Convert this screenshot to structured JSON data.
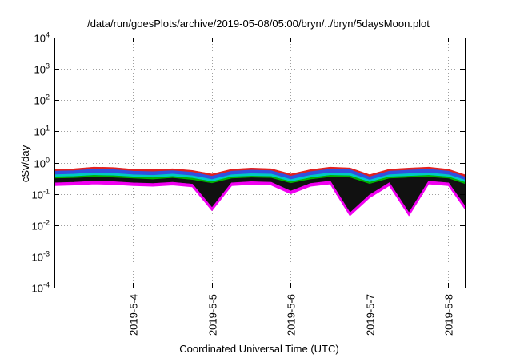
{
  "chart_data": {
    "type": "area",
    "title": "/data/run/goesPlots/archive/2019-05-08/05:00/bryn/../bryn/5daysMoon.plot",
    "xlabel": "Coordinated Universal Time (UTC)",
    "ylabel": "cSv/day",
    "y_scale": "log",
    "ylim": [
      0.0001,
      10000
    ],
    "xlim": [
      "2019-05-03T00:00",
      "2019-05-08T05:00"
    ],
    "x_ticks": [
      {
        "label": "2019-5-4",
        "value": "2019-05-04T00:00"
      },
      {
        "label": "2019-5-5",
        "value": "2019-05-05T00:00"
      },
      {
        "label": "2019-5-6",
        "value": "2019-05-06T00:00"
      },
      {
        "label": "2019-5-7",
        "value": "2019-05-07T00:00"
      },
      {
        "label": "2019-5-8",
        "value": "2019-05-08T00:00"
      }
    ],
    "y_ticks": [
      {
        "label": "10",
        "exp": "-4",
        "value": 0.0001
      },
      {
        "label": "10",
        "exp": "-3",
        "value": 0.001
      },
      {
        "label": "10",
        "exp": "-2",
        "value": 0.01
      },
      {
        "label": "10",
        "exp": "-1",
        "value": 0.1
      },
      {
        "label": "10",
        "exp": "0",
        "value": 1
      },
      {
        "label": "10",
        "exp": "1",
        "value": 10
      },
      {
        "label": "10",
        "exp": "2",
        "value": 100
      },
      {
        "label": "10",
        "exp": "3",
        "value": 1000
      },
      {
        "label": "10",
        "exp": "4",
        "value": 10000
      }
    ],
    "grid": true,
    "x": [
      "2019-05-03T00:00",
      "2019-05-03T06:00",
      "2019-05-03T12:00",
      "2019-05-03T18:00",
      "2019-05-04T00:00",
      "2019-05-04T06:00",
      "2019-05-04T12:00",
      "2019-05-04T18:00",
      "2019-05-05T00:00",
      "2019-05-05T06:00",
      "2019-05-05T12:00",
      "2019-05-05T18:00",
      "2019-05-06T00:00",
      "2019-05-06T06:00",
      "2019-05-06T12:00",
      "2019-05-06T18:00",
      "2019-05-07T00:00",
      "2019-05-07T06:00",
      "2019-05-07T12:00",
      "2019-05-07T18:00",
      "2019-05-08T00:00",
      "2019-05-08T05:00"
    ],
    "series": [
      {
        "color": "#e02020",
        "values": [
          0.6,
          0.62,
          0.7,
          0.68,
          0.6,
          0.58,
          0.62,
          0.55,
          0.42,
          0.6,
          0.65,
          0.62,
          0.42,
          0.58,
          0.7,
          0.66,
          0.4,
          0.6,
          0.65,
          0.7,
          0.6,
          0.4
        ]
      },
      {
        "color": "#3050e0",
        "values": [
          0.52,
          0.54,
          0.6,
          0.58,
          0.52,
          0.5,
          0.54,
          0.48,
          0.36,
          0.52,
          0.56,
          0.54,
          0.36,
          0.5,
          0.6,
          0.58,
          0.34,
          0.52,
          0.56,
          0.6,
          0.52,
          0.34
        ]
      },
      {
        "color": "#00c8c8",
        "values": [
          0.4,
          0.42,
          0.46,
          0.44,
          0.4,
          0.38,
          0.42,
          0.37,
          0.28,
          0.4,
          0.43,
          0.42,
          0.28,
          0.38,
          0.46,
          0.44,
          0.27,
          0.4,
          0.43,
          0.46,
          0.4,
          0.27
        ]
      },
      {
        "color": "#00b000",
        "values": [
          0.34,
          0.35,
          0.38,
          0.37,
          0.34,
          0.32,
          0.35,
          0.31,
          0.24,
          0.34,
          0.36,
          0.35,
          0.24,
          0.32,
          0.38,
          0.37,
          0.23,
          0.34,
          0.36,
          0.38,
          0.34,
          0.23
        ]
      },
      {
        "color": "#111111",
        "values": [
          0.3,
          0.31,
          0.33,
          0.32,
          0.3,
          0.28,
          0.31,
          0.27,
          0.21,
          0.3,
          0.32,
          0.31,
          0.21,
          0.28,
          0.33,
          0.32,
          0.2,
          0.3,
          0.32,
          0.33,
          0.3,
          0.2
        ]
      },
      {
        "color": "#f000f0",
        "values": [
          0.22,
          0.23,
          0.25,
          0.24,
          0.22,
          0.21,
          0.23,
          0.2,
          0.035,
          0.22,
          0.24,
          0.23,
          0.12,
          0.21,
          0.25,
          0.024,
          0.09,
          0.22,
          0.024,
          0.25,
          0.22,
          0.04
        ]
      }
    ]
  }
}
